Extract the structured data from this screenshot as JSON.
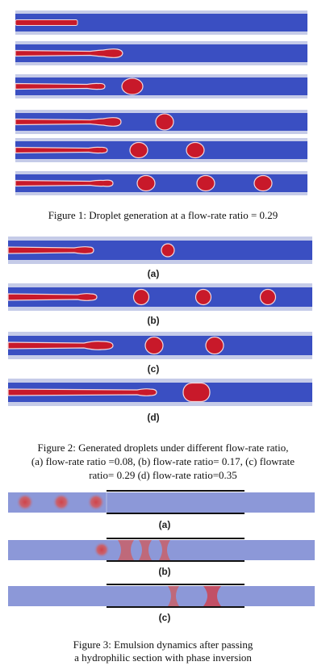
{
  "figure1": {
    "caption": "Figure 1: Droplet generation at a flow-rate ratio = 0.29"
  },
  "figure2": {
    "panel_labels": [
      "(a)",
      "(b)",
      "(c)",
      "(d)"
    ],
    "caption_lines": [
      "Figure 2: Generated droplets under different flow-rate ratio,",
      "(a) flow-rate ratio =0.08, (b) flow-rate ratio= 0.17, (c) flowrate",
      "ratio= 0.29 (d) flow-rate ratio=0.35"
    ]
  },
  "figure3": {
    "panel_labels": [
      "(a)",
      "(b)",
      "(c)"
    ],
    "caption_lines": [
      "Figure 3: Emulsion dynamics after passing",
      "a hydrophilic section with phase inversion"
    ]
  },
  "colors": {
    "channel": "#3a4fc2",
    "channel_edge": "#c5cbe8",
    "droplet": "#c8192a",
    "droplet_edge": "#f2d8dc",
    "fig3_channel": "#8c98d8",
    "wall": "#111111"
  }
}
